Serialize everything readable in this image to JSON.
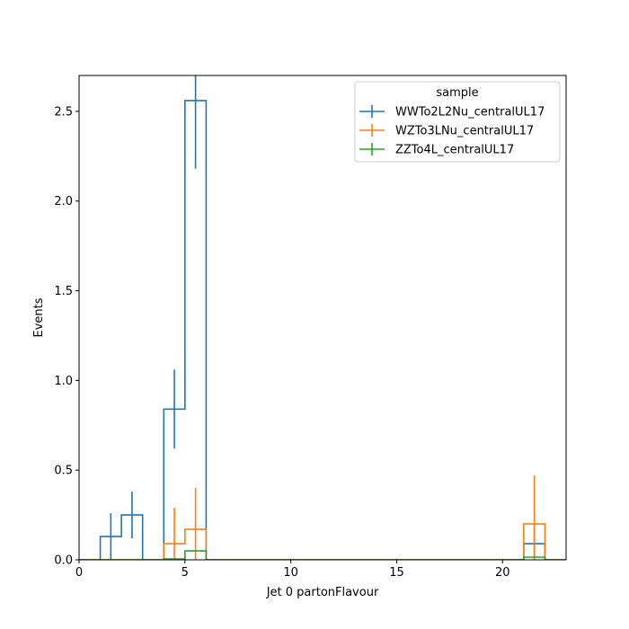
{
  "chart_data": {
    "type": "histogram-step",
    "xlabel": "Jet 0 partonFlavour",
    "ylabel": "Events",
    "xlim": [
      0,
      23
    ],
    "ylim": [
      0,
      2.7
    ],
    "xticks": [
      0,
      5,
      10,
      15,
      20
    ],
    "yticks": [
      0.0,
      0.5,
      1.0,
      1.5,
      2.0,
      2.5
    ],
    "legend": {
      "title": "sample",
      "placement": "top-right"
    },
    "bin_edges": [
      0,
      1,
      2,
      3,
      4,
      5,
      6,
      7,
      8,
      9,
      10,
      11,
      12,
      13,
      14,
      15,
      16,
      17,
      18,
      19,
      20,
      21,
      22,
      23
    ],
    "series": [
      {
        "name": "WWTo2L2Nu_centralUL17",
        "color": "#1f77b4",
        "values": [
          0,
          0.13,
          0.25,
          0,
          0.84,
          2.56,
          0,
          0,
          0,
          0,
          0,
          0,
          0,
          0,
          0,
          0,
          0,
          0,
          0,
          0,
          0,
          0.09,
          0
        ],
        "errors": [
          0,
          0.13,
          0.13,
          0,
          0.22,
          0.38,
          0,
          0,
          0,
          0,
          0,
          0,
          0,
          0,
          0,
          0,
          0,
          0,
          0,
          0,
          0,
          0.09,
          0
        ]
      },
      {
        "name": "WZTo3LNu_centralUL17",
        "color": "#ff7f0e",
        "values": [
          0,
          0,
          0,
          0,
          0.09,
          0.17,
          0,
          0,
          0,
          0,
          0,
          0,
          0,
          0,
          0,
          0,
          0,
          0,
          0,
          0,
          0,
          0.2,
          0
        ],
        "errors": [
          0,
          0,
          0,
          0,
          0.2,
          0.23,
          0,
          0,
          0,
          0,
          0,
          0,
          0,
          0,
          0,
          0,
          0,
          0,
          0,
          0,
          0,
          0.27,
          0
        ]
      },
      {
        "name": "ZZTo4L_centralUL17",
        "color": "#2ca02c",
        "values": [
          0,
          0,
          0,
          0,
          0.005,
          0.05,
          0,
          0,
          0,
          0,
          0,
          0,
          0,
          0,
          0,
          0,
          0,
          0,
          0,
          0,
          0,
          0.015,
          0
        ],
        "errors": [
          0,
          0,
          0,
          0,
          0,
          0,
          0,
          0,
          0,
          0,
          0,
          0,
          0,
          0,
          0,
          0,
          0,
          0,
          0,
          0,
          0,
          0,
          0
        ]
      }
    ]
  }
}
